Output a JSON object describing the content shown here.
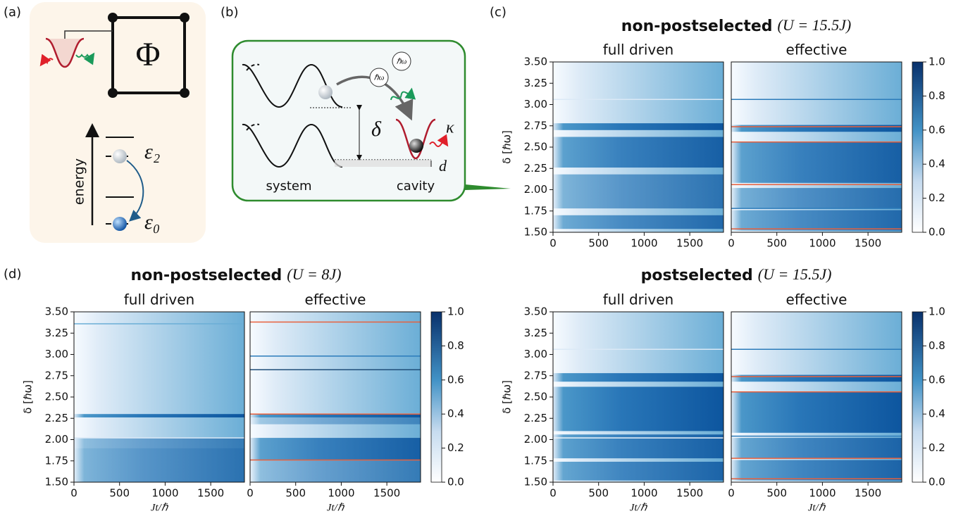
{
  "panel_a": {
    "label": "(a)",
    "flux": "Φ",
    "energy_label": "energy",
    "levels": {
      "upper": "ε₂",
      "lower": "ε₀"
    }
  },
  "panel_b": {
    "label": "(b)",
    "photons": [
      "ℏω",
      "ℏω"
    ],
    "delta": "δ",
    "detuning": "d",
    "decay": "κ",
    "system": "system",
    "cavity": "cavity"
  },
  "panel_c": {
    "label": "(c)",
    "title": {
      "bold": "non-postselected",
      "math": "(U = 15.5J)"
    },
    "subplots": [
      "full driven",
      "effective"
    ]
  },
  "panel_d": {
    "label": "(d)",
    "left": {
      "title": {
        "bold": "non-postselected",
        "math": "(U = 8J)"
      },
      "subplots": [
        "full driven",
        "effective"
      ]
    },
    "right": {
      "title": {
        "bold": "postselected",
        "math": "(U = 15.5J)"
      },
      "subplots": [
        "full driven",
        "effective"
      ]
    }
  },
  "axes": {
    "y_label": "δ [ℏω]",
    "x_label": "Jt/ℏ",
    "yticks": [
      "3.50",
      "3.25",
      "3.00",
      "2.75",
      "2.50",
      "2.25",
      "2.00",
      "1.75",
      "1.50"
    ],
    "xticks": [
      "0",
      "500",
      "1000",
      "1500"
    ],
    "colorbar_ticks": [
      "1.0",
      "0.8",
      "0.6",
      "0.4",
      "0.2",
      "0.0"
    ]
  }
}
